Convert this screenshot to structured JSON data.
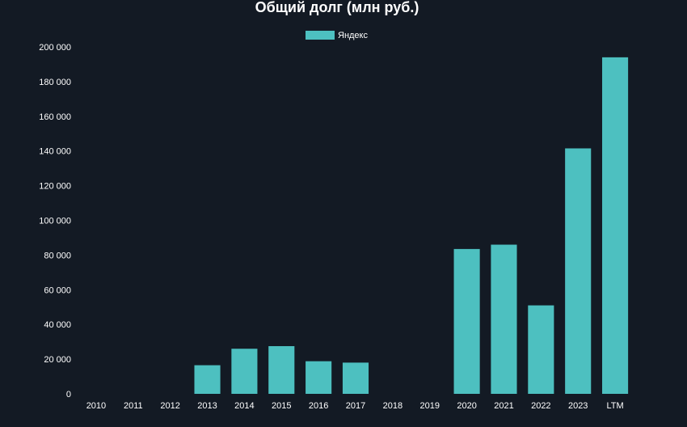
{
  "chart_data": {
    "type": "bar",
    "title": "Общий долг (млн руб.)",
    "xlabel": "",
    "ylabel": "",
    "categories": [
      "2010",
      "2011",
      "2012",
      "2013",
      "2014",
      "2015",
      "2016",
      "2017",
      "2018",
      "2019",
      "2020",
      "2021",
      "2022",
      "2023",
      "LTM"
    ],
    "series": [
      {
        "name": "Яндекс",
        "values": [
          0,
          0,
          0,
          16500,
          26000,
          27500,
          18800,
          18000,
          0,
          0,
          83500,
          86000,
          51000,
          141500,
          194000
        ]
      }
    ],
    "ylim": [
      0,
      200000
    ],
    "yticks": [
      "0",
      "20 000",
      "40 000",
      "60 000",
      "80 000",
      "100 000",
      "120 000",
      "140 000",
      "160 000",
      "180 000",
      "200 000"
    ],
    "grid": false,
    "legend_position": "top-center",
    "colors": {
      "background": "#131a24",
      "bar": "#4dc0c0",
      "text": "#ffffff"
    }
  }
}
